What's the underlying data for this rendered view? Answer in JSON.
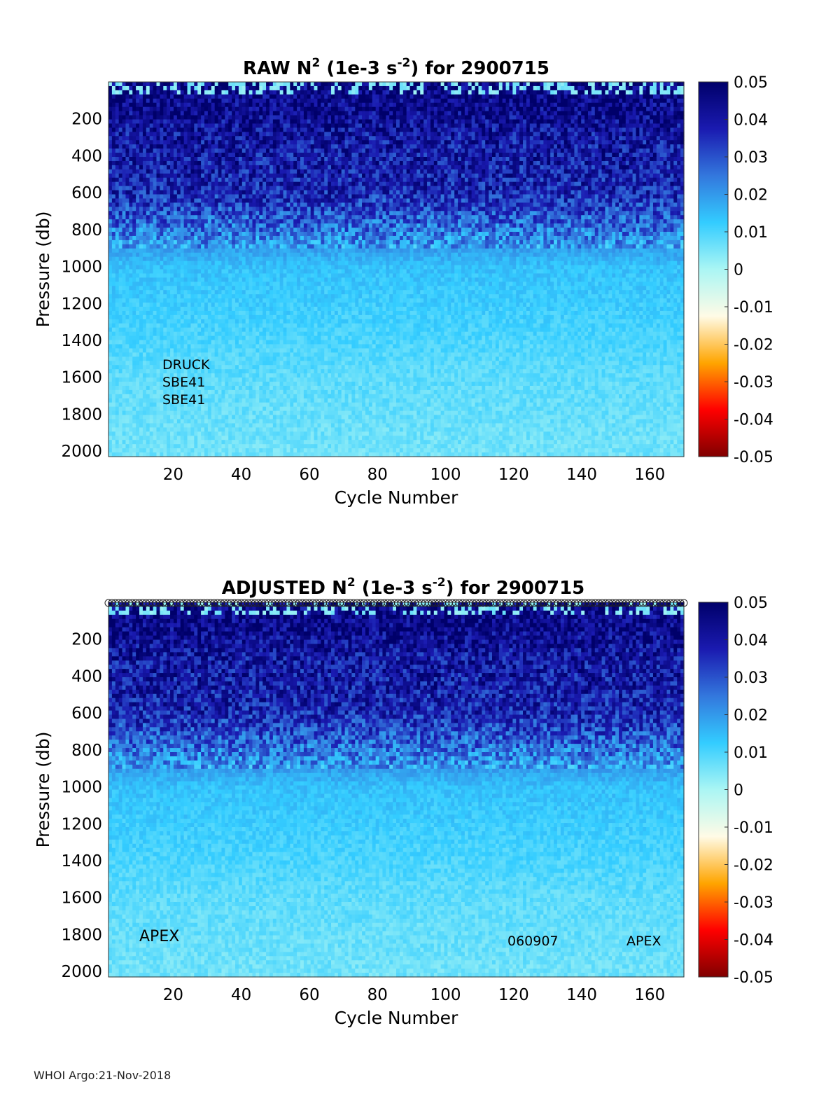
{
  "footer": "WHOI Argo:21-Nov-2018",
  "colors": {
    "colormap": [
      "#800000",
      "#ff0000",
      "#ffa500",
      "#fffbe6",
      "#aaf6f4",
      "#33ccff",
      "#3377dd",
      "#1a1ab0",
      "#00006a"
    ]
  },
  "chart_data": [
    {
      "type": "heatmap",
      "title_prefix": "RAW N",
      "title_sup1": "2",
      "title_mid": " (1e-3 s",
      "title_sup2": "-2",
      "title_suffix": ") for 2900715",
      "xlabel": "Cycle Number",
      "ylabel": "Pressure (db)",
      "xlim": [
        1,
        170
      ],
      "ylim": [
        0,
        2030
      ],
      "y_reversed": true,
      "xticks": [
        "20",
        "40",
        "60",
        "80",
        "100",
        "120",
        "140",
        "160"
      ],
      "yticks": [
        "200",
        "400",
        "600",
        "800",
        "1000",
        "1200",
        "1400",
        "1600",
        "1800",
        "2000"
      ],
      "colorbar": {
        "range": [
          -0.05,
          0.05
        ],
        "ticks": [
          "0.05",
          "0.04",
          "0.03",
          "0.02",
          "0.01",
          "0",
          "-0.01",
          "-0.02",
          "-0.03",
          "-0.04",
          "-0.05"
        ]
      },
      "annotations": [
        "DRUCK",
        "SBE41",
        "SBE41"
      ],
      "value_profile": {
        "pressure": [
          50,
          150,
          300,
          450,
          600,
          800,
          1000,
          1200,
          1400,
          1600,
          1800,
          2000
        ],
        "n2": [
          0.046,
          0.045,
          0.04,
          0.039,
          0.037,
          0.025,
          0.014,
          0.012,
          0.01,
          0.008,
          0.007,
          0.006
        ]
      }
    },
    {
      "type": "heatmap",
      "title_prefix": "ADJUSTED N",
      "title_sup1": "2",
      "title_mid": " (1e-3 s",
      "title_sup2": "-2",
      "title_suffix": ") for 2900715",
      "xlabel": "Cycle Number",
      "ylabel": "Pressure (db)",
      "xlim": [
        1,
        170
      ],
      "ylim": [
        0,
        2030
      ],
      "y_reversed": true,
      "xticks": [
        "20",
        "40",
        "60",
        "80",
        "100",
        "120",
        "140",
        "160"
      ],
      "yticks": [
        "200",
        "400",
        "600",
        "800",
        "1000",
        "1200",
        "1400",
        "1600",
        "1800",
        "2000"
      ],
      "colorbar": {
        "range": [
          -0.05,
          0.05
        ],
        "ticks": [
          "0.05",
          "0.04",
          "0.03",
          "0.02",
          "0.01",
          "0",
          "-0.01",
          "-0.02",
          "-0.03",
          "-0.04",
          "-0.05"
        ]
      },
      "annotations": [
        "APEX",
        "060907",
        "APEX"
      ],
      "value_profile": {
        "pressure": [
          50,
          150,
          300,
          450,
          600,
          800,
          1000,
          1200,
          1400,
          1600,
          1800,
          2000
        ],
        "n2": [
          0.046,
          0.045,
          0.04,
          0.039,
          0.037,
          0.025,
          0.014,
          0.012,
          0.01,
          0.008,
          0.007,
          0.006
        ]
      }
    }
  ]
}
